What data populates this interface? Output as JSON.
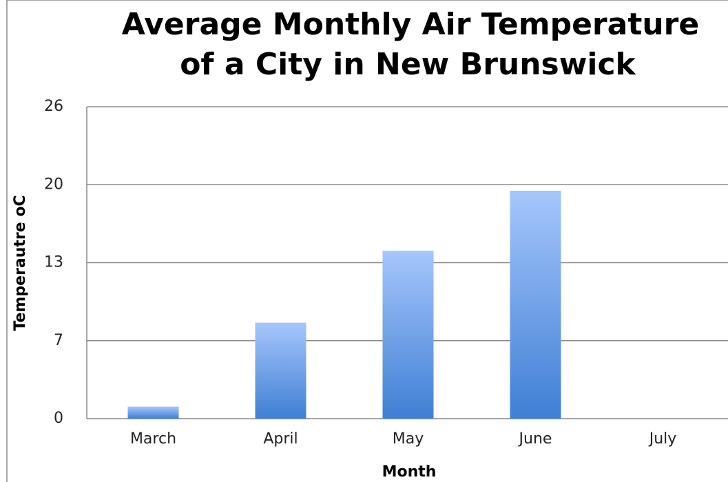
{
  "chart_data": {
    "type": "bar",
    "title": [
      "Average Monthly Air Temperature",
      "of a City in New Brunswick"
    ],
    "xlabel": "Month",
    "ylabel": "Temperautre oC",
    "categories": [
      "March",
      "April",
      "May",
      "June",
      "July"
    ],
    "values": [
      1,
      8,
      14,
      19,
      null
    ],
    "color": "#3f7fd4",
    "ylim": [
      0,
      26
    ],
    "yticks": [
      0,
      {
        "value": 6.5,
        "label": "7"
      },
      13,
      {
        "value": 19.5,
        "label": "20"
      },
      26
    ],
    "grid": true
  }
}
